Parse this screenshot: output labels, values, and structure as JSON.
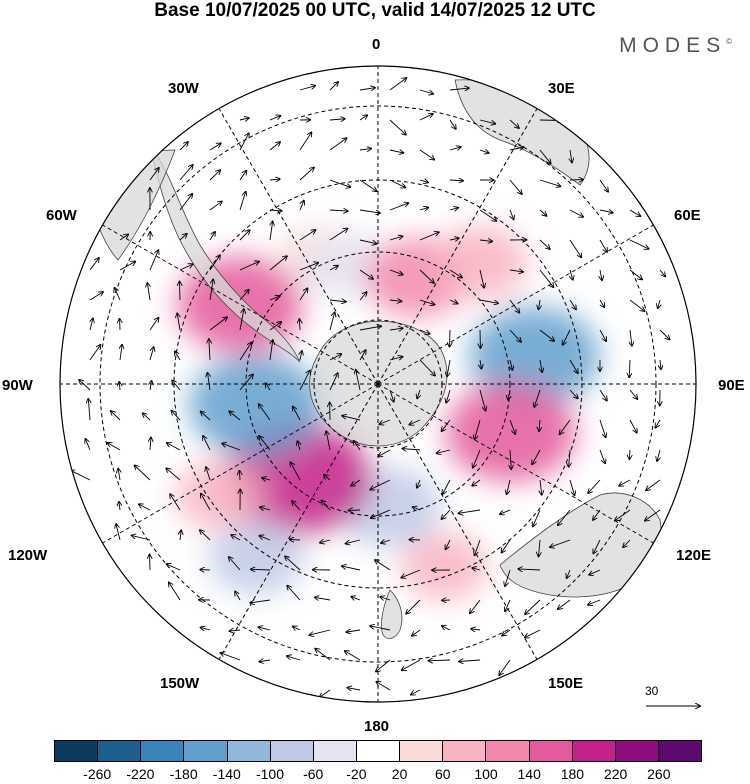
{
  "title": "Base 10/07/2025 00 UTC, valid 14/07/2025 12 UTC",
  "brand": "MODES",
  "brand_mark": "©",
  "lon_labels": {
    "l0": "0",
    "l30e": "30E",
    "l60e": "60E",
    "l90e": "90E",
    "l120e": "120E",
    "l150e": "150E",
    "l180": "180",
    "l150w": "150W",
    "l120w": "120W",
    "l90w": "90W",
    "l60w": "60W",
    "l30w": "30W"
  },
  "ref_vector": "30",
  "colorbar": {
    "colors": [
      "#0d3b5e",
      "#1c5f8e",
      "#3b83b8",
      "#639fcc",
      "#93b6db",
      "#bfc9e6",
      "#e4e4f2",
      "#ffffff",
      "#fbdada",
      "#f8b4c2",
      "#f288ad",
      "#e45a9c",
      "#c4228a",
      "#8f0c7c",
      "#5c0a6e"
    ],
    "ticks": [
      "-260",
      "-220",
      "-180",
      "-140",
      "-100",
      "-60",
      "-20",
      "20",
      "60",
      "100",
      "140",
      "180",
      "220",
      "260"
    ]
  },
  "map_data": {
    "projection": "south-polar-stereographic",
    "anomalies": [
      {
        "lon": -60,
        "lat": -45,
        "value": 150
      },
      {
        "lon": -25,
        "lat": -50,
        "value": 40
      },
      {
        "lon": -15,
        "lat": -55,
        "value": -60
      },
      {
        "lon": 20,
        "lat": -58,
        "value": 100
      },
      {
        "lon": 40,
        "lat": -45,
        "value": 80
      },
      {
        "lon": 80,
        "lat": -45,
        "value": -160
      },
      {
        "lon": 110,
        "lat": -50,
        "value": 160
      },
      {
        "lon": 175,
        "lat": -55,
        "value": -100
      },
      {
        "lon": -140,
        "lat": -55,
        "value": 200
      },
      {
        "lon": -100,
        "lat": -55,
        "value": -170
      },
      {
        "lon": -125,
        "lat": -35,
        "value": 60
      },
      {
        "lon": -145,
        "lat": -30,
        "value": -80
      },
      {
        "lon": 160,
        "lat": -35,
        "value": 60
      }
    ]
  }
}
